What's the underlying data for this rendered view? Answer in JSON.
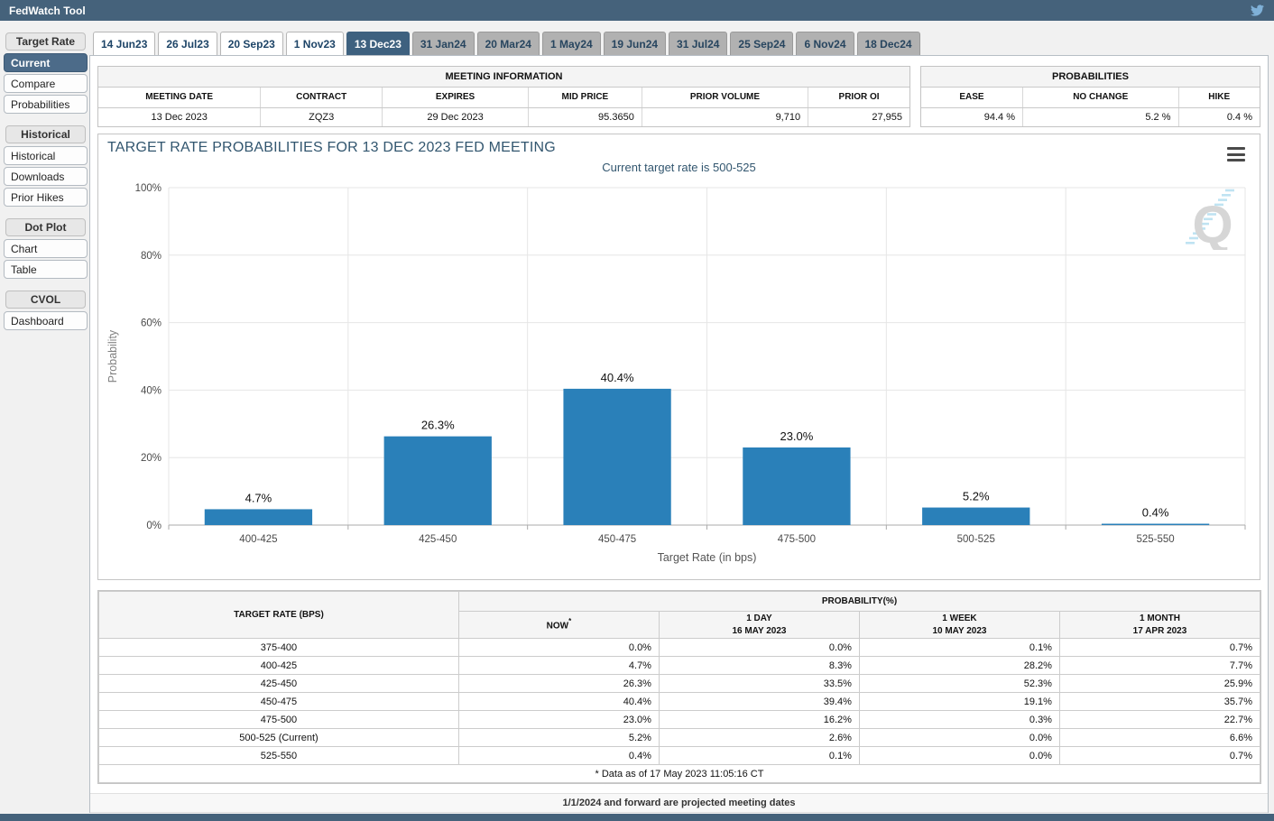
{
  "topbar": {
    "title": "FedWatch Tool"
  },
  "tabs": [
    {
      "label": "14 Jun23",
      "state": "past"
    },
    {
      "label": "26 Jul23",
      "state": "past"
    },
    {
      "label": "20 Sep23",
      "state": "past"
    },
    {
      "label": "1 Nov23",
      "state": "past"
    },
    {
      "label": "13 Dec23",
      "state": "selected"
    },
    {
      "label": "31 Jan24",
      "state": "future"
    },
    {
      "label": "20 Mar24",
      "state": "future"
    },
    {
      "label": "1 May24",
      "state": "future"
    },
    {
      "label": "19 Jun24",
      "state": "future"
    },
    {
      "label": "31 Jul24",
      "state": "future"
    },
    {
      "label": "25 Sep24",
      "state": "future"
    },
    {
      "label": "6 Nov24",
      "state": "future"
    },
    {
      "label": "18 Dec24",
      "state": "future"
    }
  ],
  "sidebar": {
    "sections": [
      {
        "header": "Target Rate",
        "items": [
          {
            "label": "Current",
            "selected": true
          },
          {
            "label": "Compare",
            "selected": false
          },
          {
            "label": "Probabilities",
            "selected": false
          }
        ]
      },
      {
        "header": "Historical",
        "items": [
          {
            "label": "Historical",
            "selected": false
          },
          {
            "label": "Downloads",
            "selected": false
          },
          {
            "label": "Prior Hikes",
            "selected": false
          }
        ]
      },
      {
        "header": "Dot Plot",
        "items": [
          {
            "label": "Chart",
            "selected": false
          },
          {
            "label": "Table",
            "selected": false
          }
        ]
      },
      {
        "header": "CVOL",
        "items": [
          {
            "label": "Dashboard",
            "selected": false
          }
        ]
      }
    ]
  },
  "meeting_info": {
    "title": "MEETING INFORMATION",
    "headers": [
      "MEETING DATE",
      "CONTRACT",
      "EXPIRES",
      "MID PRICE",
      "PRIOR VOLUME",
      "PRIOR OI"
    ],
    "values": [
      "13 Dec 2023",
      "ZQZ3",
      "29 Dec 2023",
      "95.3650",
      "9,710",
      "27,955"
    ],
    "align": [
      "center",
      "center",
      "center",
      "right",
      "right",
      "right"
    ],
    "col_widths": [
      "20%",
      "15%",
      "18%",
      "14%",
      "20.5%",
      "12.5%"
    ]
  },
  "probabilities_summary": {
    "title": "PROBABILITIES",
    "headers": [
      "EASE",
      "NO CHANGE",
      "HIKE"
    ],
    "values": [
      "94.4 %",
      "5.2 %",
      "0.4 %"
    ],
    "col_widths": [
      "30%",
      "46%",
      "24%"
    ]
  },
  "chart_data": {
    "type": "bar",
    "title": "TARGET RATE PROBABILITIES FOR 13 DEC 2023 FED MEETING",
    "subtitle": "Current target rate is 500-525",
    "categories": [
      "400-425",
      "425-450",
      "450-475",
      "475-500",
      "500-525",
      "525-550"
    ],
    "values": [
      4.7,
      26.3,
      40.4,
      23.0,
      5.2,
      0.4
    ],
    "bar_labels": [
      "4.7%",
      "26.3%",
      "40.4%",
      "23.0%",
      "5.2%",
      "0.4%"
    ],
    "xlabel": "Target Rate (in bps)",
    "ylabel": "Probability",
    "ylim": [
      0,
      100
    ],
    "ytick_step": 20,
    "ytick_labels": [
      "0%",
      "20%",
      "40%",
      "60%",
      "80%",
      "100%"
    ],
    "bar_color": "#2a80b9",
    "grid": true,
    "legend_visible": false,
    "watermark_letter": "Q"
  },
  "prob_table": {
    "rate_header": "TARGET RATE (BPS)",
    "group_header": "PROBABILITY(%)",
    "columns": [
      {
        "label": "NOW",
        "sup": "*",
        "sub": ""
      },
      {
        "label": "1 DAY",
        "sup": "",
        "sub": "16 MAY 2023"
      },
      {
        "label": "1 WEEK",
        "sup": "",
        "sub": "10 MAY 2023"
      },
      {
        "label": "1 MONTH",
        "sup": "",
        "sub": "17 APR 2023"
      }
    ],
    "rows": [
      {
        "rate": "375-400",
        "values": [
          "0.0%",
          "0.0%",
          "0.1%",
          "0.7%"
        ]
      },
      {
        "rate": "400-425",
        "values": [
          "4.7%",
          "8.3%",
          "28.2%",
          "7.7%"
        ]
      },
      {
        "rate": "425-450",
        "values": [
          "26.3%",
          "33.5%",
          "52.3%",
          "25.9%"
        ]
      },
      {
        "rate": "450-475",
        "values": [
          "40.4%",
          "39.4%",
          "19.1%",
          "35.7%"
        ]
      },
      {
        "rate": "475-500",
        "values": [
          "23.0%",
          "16.2%",
          "0.3%",
          "22.7%"
        ]
      },
      {
        "rate": "500-525 (Current)",
        "values": [
          "5.2%",
          "2.6%",
          "0.0%",
          "6.6%"
        ]
      },
      {
        "rate": "525-550",
        "values": [
          "0.4%",
          "0.1%",
          "0.0%",
          "0.7%"
        ]
      }
    ],
    "footnote": "* Data as of 17 May 2023 11:05:16 CT",
    "now_col_color": "#f6f6d9"
  },
  "footer": {
    "projected_note": "1/1/2024 and forward are projected meeting dates"
  }
}
